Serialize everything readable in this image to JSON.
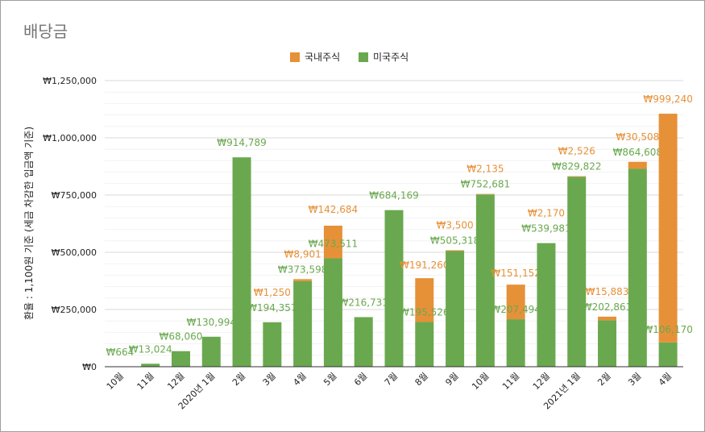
{
  "chart_data": {
    "type": "bar",
    "stacked": true,
    "title": "배당금",
    "ylabel": "환율 : 1,100원 기준 (세금 차감한 입금액 기준)",
    "xlabel": "",
    "ylim": [
      0,
      1250000
    ],
    "yticks": [
      "₩0",
      "₩250,000",
      "₩500,000",
      "₩750,000",
      "₩1,000,000",
      "₩1,250,000"
    ],
    "ytick_values": [
      0,
      250000,
      500000,
      750000,
      1000000,
      1250000
    ],
    "legend_position": "top-center",
    "categories": [
      "10월",
      "11월",
      "12월",
      "2020년 1월",
      "2월",
      "3월",
      "4월",
      "5월",
      "6월",
      "7월",
      "8월",
      "9월",
      "10월",
      "11월",
      "12월",
      "2021년 1월",
      "2월",
      "3월",
      "4월"
    ],
    "series": [
      {
        "name": "미국주식",
        "color": "#6aa84f",
        "values": [
          664,
          13024,
          68060,
          130994,
          914789,
          194357,
          373598,
          473511,
          216731,
          684169,
          195526,
          505318,
          752681,
          207494,
          539981,
          829822,
          202861,
          864608,
          106170
        ],
        "labels": [
          "₩664",
          "₩13,024",
          "₩68,060",
          "₩130,994",
          "₩914,789",
          "₩194,357",
          "₩373,598",
          "₩473,511",
          "₩216,731",
          "₩684,169",
          "₩195,526",
          "₩505,318",
          "₩752,681",
          "₩207,494",
          "₩539,981",
          "₩829,822",
          "₩202,861",
          "₩864,608",
          "₩106,170"
        ]
      },
      {
        "name": "국내주식",
        "color": "#e69138",
        "values": [
          null,
          null,
          null,
          null,
          null,
          null,
          8901,
          142684,
          null,
          null,
          191260,
          3500,
          2135,
          151152,
          null,
          2526,
          15883,
          30508,
          999240
        ],
        "labels": [
          null,
          null,
          null,
          null,
          null,
          null,
          "₩8,901",
          "₩142,684",
          null,
          null,
          "₩191,260",
          "₩3,500",
          "₩2,135",
          "₩151,152",
          null,
          "₩2,526",
          "₩15,883",
          "₩30,508",
          "₩999,240"
        ],
        "extra_labels": [
          null,
          null,
          null,
          null,
          null,
          "₩1,250",
          null,
          null,
          null,
          null,
          null,
          null,
          null,
          null,
          "₩2,170",
          null,
          null,
          null,
          null
        ]
      }
    ]
  }
}
